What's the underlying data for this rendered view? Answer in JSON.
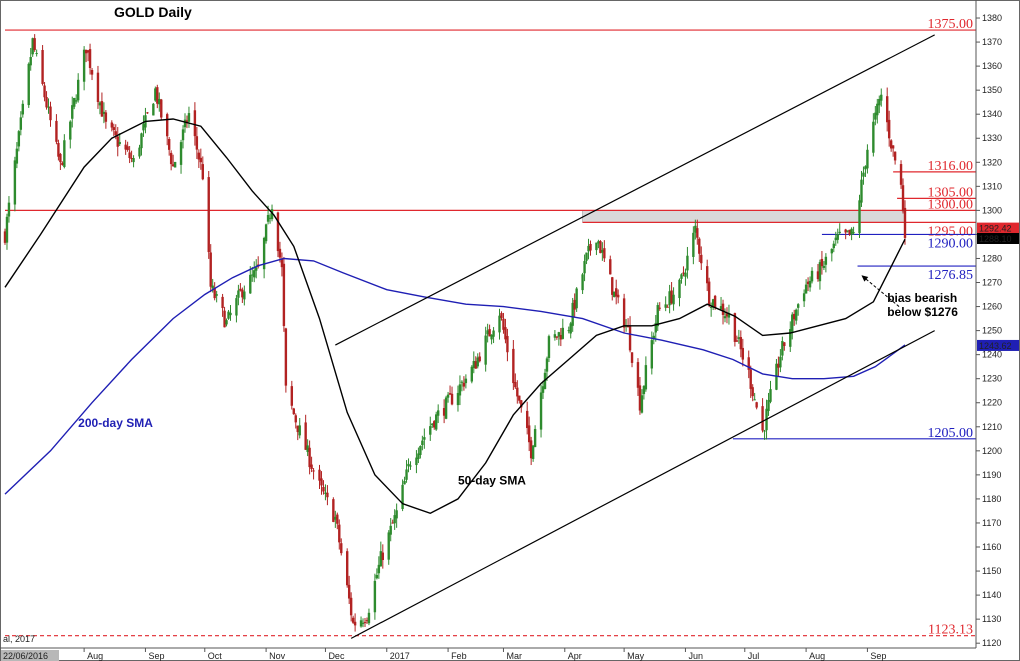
{
  "chart_data": {
    "type": "candlestick",
    "title": "GOLD Daily",
    "ylim": [
      1118,
      1385
    ],
    "y_ticks": [
      1120,
      1130,
      1140,
      1150,
      1160,
      1170,
      1180,
      1190,
      1200,
      1210,
      1220,
      1230,
      1240,
      1250,
      1260,
      1270,
      1280,
      1290,
      1300,
      1310,
      1320,
      1330,
      1340,
      1350,
      1360,
      1370,
      1380
    ],
    "x_start_date": "22/06/2016",
    "x_end_date": "2017-09-20",
    "x_labels": [
      {
        "date": "2016-08-01",
        "label": "Aug"
      },
      {
        "date": "2016-09-01",
        "label": "Sep"
      },
      {
        "date": "2016-10-01",
        "label": "Oct"
      },
      {
        "date": "2016-11-01",
        "label": "Nov"
      },
      {
        "date": "2016-12-01",
        "label": "Dec"
      },
      {
        "date": "2017-01-01",
        "label": "2017"
      },
      {
        "date": "2017-02-01",
        "label": "Feb"
      },
      {
        "date": "2017-03-01",
        "label": "Mar"
      },
      {
        "date": "2017-04-01",
        "label": "Apr"
      },
      {
        "date": "2017-05-01",
        "label": "May"
      },
      {
        "date": "2017-06-01",
        "label": "Jun"
      },
      {
        "date": "2017-07-01",
        "label": "Jul"
      },
      {
        "date": "2017-08-01",
        "label": "Aug"
      },
      {
        "date": "2017-09-01",
        "label": "Sep"
      }
    ],
    "footer_date_label": "22/06/2016",
    "footer_note": "al, 2017",
    "price_series": {
      "name": "GOLD",
      "points": [
        {
          "date": "2016-06-22",
          "close": 1290
        },
        {
          "date": "2016-07-06",
          "close": 1370
        },
        {
          "date": "2016-07-20",
          "close": 1318
        },
        {
          "date": "2016-08-02",
          "close": 1368
        },
        {
          "date": "2016-08-12",
          "close": 1335
        },
        {
          "date": "2016-08-26",
          "close": 1320
        },
        {
          "date": "2016-09-06",
          "close": 1350
        },
        {
          "date": "2016-09-15",
          "close": 1318
        },
        {
          "date": "2016-09-23",
          "close": 1340
        },
        {
          "date": "2016-09-30",
          "close": 1315
        },
        {
          "date": "2016-10-04",
          "close": 1268
        },
        {
          "date": "2016-10-12",
          "close": 1253
        },
        {
          "date": "2016-10-20",
          "close": 1267
        },
        {
          "date": "2016-10-28",
          "close": 1275
        },
        {
          "date": "2016-11-04",
          "close": 1303
        },
        {
          "date": "2016-11-09",
          "close": 1275
        },
        {
          "date": "2016-11-11",
          "close": 1225
        },
        {
          "date": "2016-11-18",
          "close": 1208
        },
        {
          "date": "2016-11-28",
          "close": 1185
        },
        {
          "date": "2016-12-06",
          "close": 1172
        },
        {
          "date": "2016-12-15",
          "close": 1128
        },
        {
          "date": "2016-12-22",
          "close": 1132
        },
        {
          "date": "2016-12-29",
          "close": 1155
        },
        {
          "date": "2017-01-06",
          "close": 1174
        },
        {
          "date": "2017-01-13",
          "close": 1196
        },
        {
          "date": "2017-01-24",
          "close": 1212
        },
        {
          "date": "2017-02-03",
          "close": 1222
        },
        {
          "date": "2017-02-14",
          "close": 1235
        },
        {
          "date": "2017-02-27",
          "close": 1258
        },
        {
          "date": "2017-03-07",
          "close": 1226
        },
        {
          "date": "2017-03-15",
          "close": 1200
        },
        {
          "date": "2017-03-24",
          "close": 1245
        },
        {
          "date": "2017-04-03",
          "close": 1252
        },
        {
          "date": "2017-04-12",
          "close": 1280
        },
        {
          "date": "2017-04-17",
          "close": 1290
        },
        {
          "date": "2017-04-26",
          "close": 1265
        },
        {
          "date": "2017-05-03",
          "close": 1250
        },
        {
          "date": "2017-05-09",
          "close": 1220
        },
        {
          "date": "2017-05-18",
          "close": 1258
        },
        {
          "date": "2017-05-29",
          "close": 1268
        },
        {
          "date": "2017-06-06",
          "close": 1292
        },
        {
          "date": "2017-06-13",
          "close": 1264
        },
        {
          "date": "2017-06-23",
          "close": 1256
        },
        {
          "date": "2017-07-03",
          "close": 1232
        },
        {
          "date": "2017-07-10",
          "close": 1208
        },
        {
          "date": "2017-07-19",
          "close": 1240
        },
        {
          "date": "2017-07-31",
          "close": 1268
        },
        {
          "date": "2017-08-09",
          "close": 1276
        },
        {
          "date": "2017-08-17",
          "close": 1288
        },
        {
          "date": "2017-08-25",
          "close": 1290
        },
        {
          "date": "2017-09-01",
          "close": 1326
        },
        {
          "date": "2017-09-08",
          "close": 1348
        },
        {
          "date": "2017-09-13",
          "close": 1328
        },
        {
          "date": "2017-09-18",
          "close": 1310
        },
        {
          "date": "2017-09-20",
          "close": 1292
        }
      ]
    },
    "sma50": {
      "label": "50-day SMA",
      "color": "#000000",
      "points": [
        {
          "date": "2016-06-22",
          "value": 1268
        },
        {
          "date": "2016-07-10",
          "value": 1290
        },
        {
          "date": "2016-08-01",
          "value": 1318
        },
        {
          "date": "2016-08-15",
          "value": 1330
        },
        {
          "date": "2016-09-01",
          "value": 1337
        },
        {
          "date": "2016-09-15",
          "value": 1338
        },
        {
          "date": "2016-09-29",
          "value": 1335
        },
        {
          "date": "2016-10-12",
          "value": 1322
        },
        {
          "date": "2016-10-25",
          "value": 1308
        },
        {
          "date": "2016-11-05",
          "value": 1298
        },
        {
          "date": "2016-11-15",
          "value": 1285
        },
        {
          "date": "2016-11-28",
          "value": 1255
        },
        {
          "date": "2016-12-12",
          "value": 1216
        },
        {
          "date": "2016-12-26",
          "value": 1190
        },
        {
          "date": "2017-01-09",
          "value": 1178
        },
        {
          "date": "2017-01-23",
          "value": 1174
        },
        {
          "date": "2017-02-06",
          "value": 1180
        },
        {
          "date": "2017-02-20",
          "value": 1195
        },
        {
          "date": "2017-03-06",
          "value": 1215
        },
        {
          "date": "2017-03-20",
          "value": 1228
        },
        {
          "date": "2017-04-03",
          "value": 1238
        },
        {
          "date": "2017-04-17",
          "value": 1248
        },
        {
          "date": "2017-05-01",
          "value": 1252
        },
        {
          "date": "2017-05-15",
          "value": 1252
        },
        {
          "date": "2017-05-29",
          "value": 1255
        },
        {
          "date": "2017-06-12",
          "value": 1261
        },
        {
          "date": "2017-06-26",
          "value": 1256
        },
        {
          "date": "2017-07-10",
          "value": 1248
        },
        {
          "date": "2017-07-24",
          "value": 1249
        },
        {
          "date": "2017-08-07",
          "value": 1252
        },
        {
          "date": "2017-08-21",
          "value": 1255
        },
        {
          "date": "2017-09-04",
          "value": 1262
        },
        {
          "date": "2017-09-20",
          "value": 1288
        }
      ]
    },
    "sma200": {
      "label": "200-day SMA",
      "color": "#1f1fb4",
      "points": [
        {
          "date": "2016-06-22",
          "value": 1182
        },
        {
          "date": "2016-07-15",
          "value": 1200
        },
        {
          "date": "2016-08-05",
          "value": 1220
        },
        {
          "date": "2016-08-25",
          "value": 1238
        },
        {
          "date": "2016-09-15",
          "value": 1255
        },
        {
          "date": "2016-10-01",
          "value": 1265
        },
        {
          "date": "2016-10-15",
          "value": 1272
        },
        {
          "date": "2016-10-28",
          "value": 1277
        },
        {
          "date": "2016-11-10",
          "value": 1280
        },
        {
          "date": "2016-11-25",
          "value": 1279
        },
        {
          "date": "2016-12-10",
          "value": 1274
        },
        {
          "date": "2017-01-01",
          "value": 1267
        },
        {
          "date": "2017-01-20",
          "value": 1264
        },
        {
          "date": "2017-02-10",
          "value": 1261
        },
        {
          "date": "2017-03-01",
          "value": 1260
        },
        {
          "date": "2017-03-20",
          "value": 1258
        },
        {
          "date": "2017-04-10",
          "value": 1255
        },
        {
          "date": "2017-05-01",
          "value": 1249
        },
        {
          "date": "2017-05-20",
          "value": 1246
        },
        {
          "date": "2017-06-10",
          "value": 1242
        },
        {
          "date": "2017-06-25",
          "value": 1238
        },
        {
          "date": "2017-07-10",
          "value": 1232
        },
        {
          "date": "2017-07-25",
          "value": 1230
        },
        {
          "date": "2017-08-10",
          "value": 1230
        },
        {
          "date": "2017-08-25",
          "value": 1231
        },
        {
          "date": "2017-09-05",
          "value": 1235
        },
        {
          "date": "2017-09-20",
          "value": 1244
        }
      ]
    },
    "channel_lines": [
      {
        "from": {
          "date": "2016-12-06",
          "value": 1244
        },
        "to": {
          "date": "2017-10-05",
          "value": 1373
        }
      },
      {
        "from": {
          "date": "2016-12-14",
          "value": 1122
        },
        "to": {
          "date": "2017-10-05",
          "value": 1250
        }
      }
    ],
    "resistance_zone": {
      "from_date": "2017-04-10",
      "to_date": "2017-09-20",
      "low": 1295,
      "high": 1300,
      "color": "#d9d9d9"
    },
    "levels": [
      {
        "value": 1375,
        "label": "1375.00",
        "color": "#e0282e",
        "from_date": "2016-06-22",
        "style": "solid",
        "label_pos": "above"
      },
      {
        "value": 1300,
        "label": "1300.00",
        "color": "#e0282e",
        "from_date": "2016-06-22",
        "style": "solid",
        "label_pos": "above"
      },
      {
        "value": 1295,
        "label": "1295.00",
        "color": "#e0282e",
        "from_date": "2017-04-10",
        "style": "solid",
        "label_pos": "below"
      },
      {
        "value": 1316,
        "label": "1316.00",
        "color": "#e0282e",
        "from_date": "2017-09-14",
        "style": "solid",
        "label_pos": "above"
      },
      {
        "value": 1305,
        "label": "1305.00",
        "color": "#e0282e",
        "from_date": "2017-09-16",
        "style": "solid",
        "label_pos": "above"
      },
      {
        "value": 1290,
        "label": "1290.00",
        "color": "#2020c0",
        "from_date": "2017-08-09",
        "style": "solid",
        "label_pos": "below"
      },
      {
        "value": 1276.85,
        "label": "1276.85",
        "color": "#2020c0",
        "from_date": "2017-08-27",
        "style": "solid",
        "label_pos": "below"
      },
      {
        "value": 1205,
        "label": "1205.00",
        "color": "#2020c0",
        "from_date": "2017-06-25",
        "style": "solid",
        "label_pos": "above"
      },
      {
        "value": 1123.13,
        "label": "1123.13",
        "color": "#e0282e",
        "from_date": "2016-06-22",
        "style": "dashed",
        "label_pos": "above"
      }
    ],
    "axis_tags": [
      {
        "value": 1292.42,
        "label": "1292.42",
        "bg": "#e0282e",
        "fg": "#ffffff"
      },
      {
        "value": 1288.1,
        "label": "1288.10",
        "bg": "#000000",
        "fg": "#ffffff"
      },
      {
        "value": 1243.62,
        "label": "1243.62",
        "bg": "#1f1fb4",
        "fg": "#ffffff"
      }
    ],
    "annotations": [
      {
        "text": "bias bearish",
        "date": "2017-09-11",
        "value": 1262
      },
      {
        "text": "below $1276",
        "date": "2017-09-11",
        "value": 1256
      },
      {
        "text": "200-day SMA",
        "date": "2016-07-29",
        "value": 1210,
        "color": "#1f1fb4"
      },
      {
        "text": "50-day SMA",
        "date": "2017-02-06",
        "value": 1186,
        "color": "#000000"
      }
    ],
    "arrow": {
      "from": {
        "date": "2017-09-17",
        "value": 1260
      },
      "to": {
        "date": "2017-08-29",
        "value": 1273
      }
    }
  }
}
